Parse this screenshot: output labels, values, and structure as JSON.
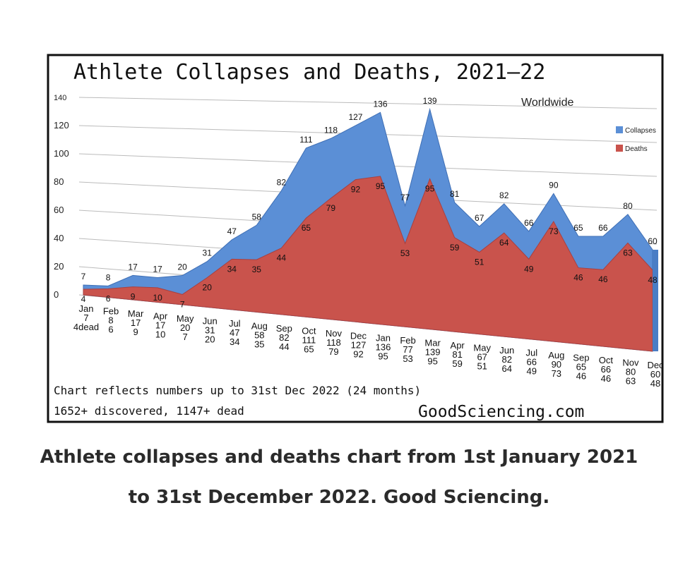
{
  "chart_data": {
    "type": "area",
    "title": "Athlete Collapses and Deaths, 2021—22",
    "subtitle": "Worldwide",
    "ylim": [
      0,
      140
    ],
    "yticks": [
      0,
      20,
      40,
      60,
      80,
      100,
      120,
      140
    ],
    "grid": true,
    "legend_position": "right",
    "categories": [
      "Jan",
      "Feb",
      "Mar",
      "Apr",
      "May",
      "Jun",
      "Jul",
      "Aug",
      "Sep",
      "Oct",
      "Nov",
      "Dec",
      "Jan",
      "Feb",
      "Mar",
      "Apr",
      "May",
      "Jun",
      "Jul",
      "Aug",
      "Sep",
      "Oct",
      "Nov",
      "Dec"
    ],
    "series": [
      {
        "name": "Collapses",
        "color": "#5b8fd6",
        "values": [
          7,
          8,
          17,
          17,
          20,
          31,
          47,
          58,
          82,
          111,
          118,
          127,
          136,
          77,
          139,
          81,
          67,
          82,
          66,
          90,
          65,
          66,
          80,
          60
        ]
      },
      {
        "name": "Deaths",
        "color": "#c9534c",
        "values": [
          4,
          6,
          9,
          10,
          7,
          20,
          34,
          35,
          44,
          65,
          79,
          92,
          95,
          53,
          95,
          59,
          51,
          64,
          49,
          73,
          46,
          46,
          63,
          48
        ]
      }
    ],
    "first_deaths_suffix": "dead",
    "notes": [
      "Chart reflects numbers up to 31st Dec 2022 (24 months)",
      "1652+ discovered, 1147+ dead"
    ],
    "source": "GoodSciencing.com"
  },
  "caption": {
    "line1": "Athlete collapses and deaths chart from 1st January 2021",
    "line2": "to 31st December 2022. Good Sciencing."
  }
}
